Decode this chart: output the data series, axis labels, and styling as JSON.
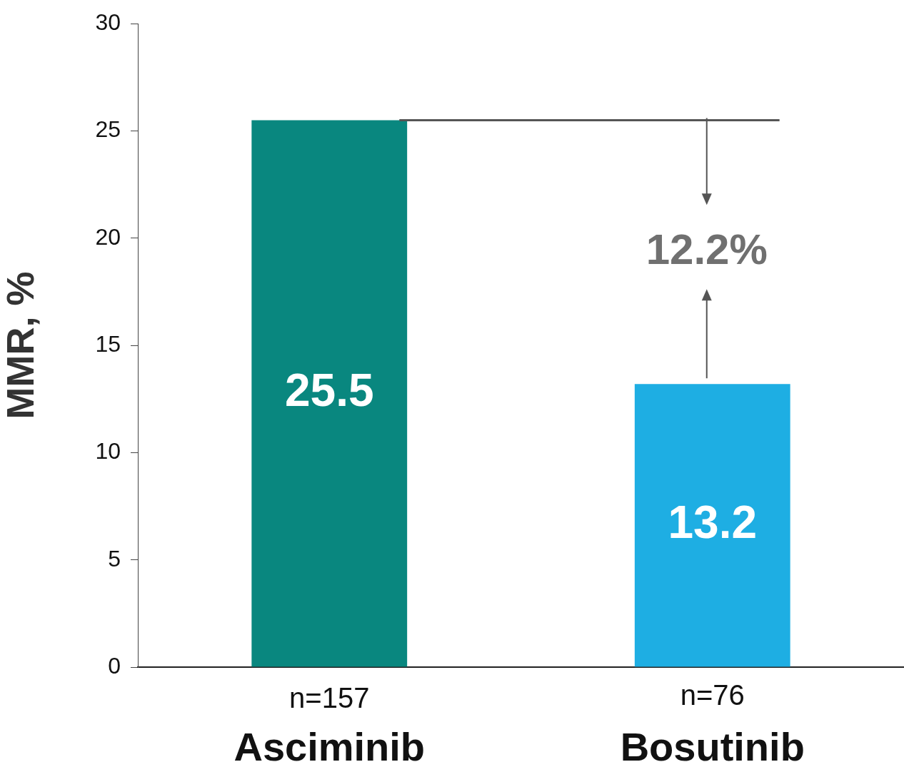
{
  "chart_data": {
    "type": "bar",
    "ylabel": "MMR, %",
    "categories": [
      "Asciminib",
      "Bosutinib"
    ],
    "values": [
      25.5,
      13.2
    ],
    "colors": [
      "#09877f",
      "#1eaee3"
    ],
    "ylim": [
      0,
      30
    ],
    "yticks": [
      0,
      5,
      10,
      15,
      20,
      25,
      30
    ],
    "grid": false,
    "legend": false,
    "data_labels": true,
    "ref_lines": [
      {
        "axis": "y",
        "value": 25.5,
        "color": "#555555"
      }
    ],
    "annotations": [
      "n=157",
      "n=76",
      "12.2%"
    ]
  }
}
